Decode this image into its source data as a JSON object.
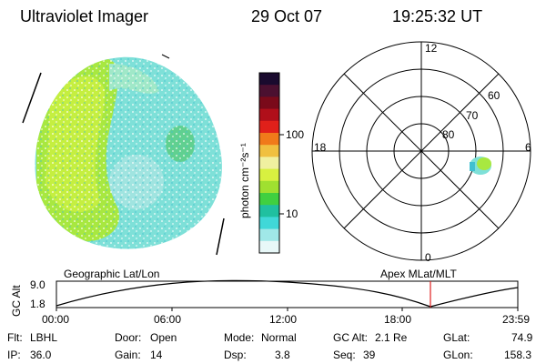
{
  "header": {
    "title": "Ultraviolet Imager",
    "date": "29 Oct 07",
    "time": "19:25:32 UT"
  },
  "colorbar": {
    "unit_label": "photon cm⁻²s⁻¹",
    "tick_labels": [
      "100",
      "10"
    ],
    "colors": [
      "#1a0a2e",
      "#4b1030",
      "#7a0a1a",
      "#b00f1a",
      "#e0201a",
      "#f07a1a",
      "#f0c040",
      "#f0f0a0",
      "#d8f040",
      "#a0e030",
      "#40d040",
      "#20c0a0",
      "#40d8d8",
      "#a0e8e8",
      "#e8f8f8"
    ]
  },
  "polar_grid": {
    "lat_labels": [
      "80",
      "70",
      "60"
    ],
    "mlt_labels": {
      "top": "12",
      "left": "18",
      "right": "6",
      "bottom": "0"
    }
  },
  "timeline": {
    "left_title": "Geographic Lat/Lon",
    "right_title": "Apex MLat/MLT",
    "y_axis_label": "GC Alt",
    "y_ticks": [
      "9.0",
      "1.8"
    ],
    "x_ticks": [
      "00:00",
      "06:00",
      "12:00",
      "18:00",
      "23:59"
    ],
    "current_marker_color": "#e02020"
  },
  "footer": {
    "row1": [
      {
        "key": "Flt:",
        "value": "LBHL"
      },
      {
        "key": "Door:",
        "value": "Open"
      },
      {
        "key": "Mode:",
        "value": "Normal"
      },
      {
        "key": "GC Alt:",
        "value": "2.1 Re"
      },
      {
        "key": "GLat:",
        "value": "74.9"
      }
    ],
    "row2": [
      {
        "key": "IP:",
        "value": "36.0"
      },
      {
        "key": "Gain:",
        "value": "14"
      },
      {
        "key": "Dsp:",
        "value": "3.8"
      },
      {
        "key": "Seq:",
        "value": "39"
      },
      {
        "key": "GLon:",
        "value": "158.3"
      }
    ]
  }
}
